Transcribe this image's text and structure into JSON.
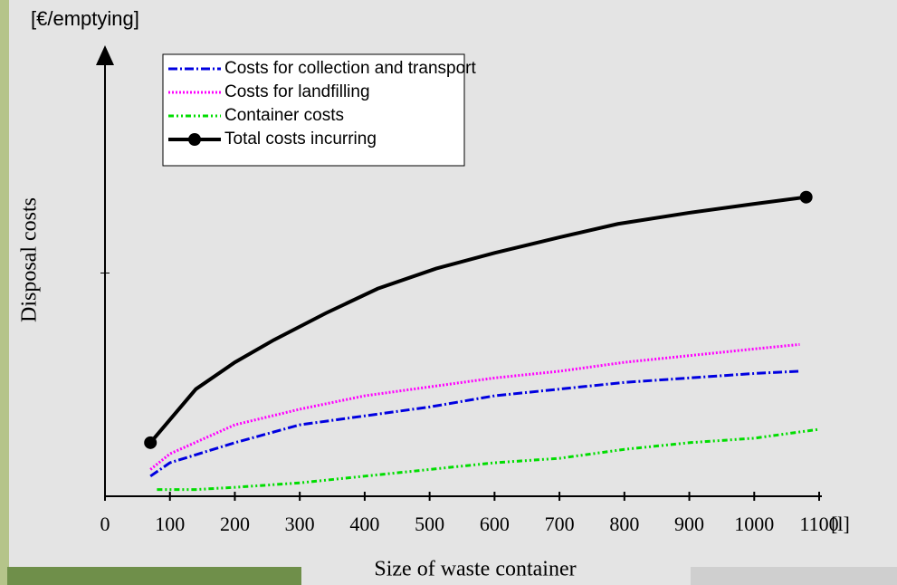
{
  "chart_data": {
    "type": "line",
    "y_unit": "[€/emptying]",
    "x_unit": "[l]",
    "ylabel": "Disposal costs",
    "xlabel": "Size of waste container",
    "xlim": [
      0,
      1100
    ],
    "xticks": [
      0,
      100,
      200,
      300,
      400,
      500,
      600,
      700,
      800,
      900,
      1000,
      1100
    ],
    "ylim": [
      0,
      2
    ],
    "yticks": [
      1
    ],
    "series": [
      {
        "name": "Costs for collection and transport",
        "color": "#0000e0",
        "dash": "10,3,2,3",
        "x": [
          70,
          100,
          200,
          300,
          400,
          500,
          600,
          700,
          800,
          900,
          1000,
          1070
        ],
        "values": [
          0.09,
          0.15,
          0.24,
          0.32,
          0.36,
          0.4,
          0.45,
          0.48,
          0.51,
          0.53,
          0.55,
          0.56
        ]
      },
      {
        "name": "Costs for landfilling",
        "color": "#ff00ff",
        "dash": "2,2",
        "x": [
          70,
          100,
          200,
          300,
          400,
          500,
          600,
          700,
          800,
          900,
          1000,
          1070
        ],
        "values": [
          0.12,
          0.19,
          0.32,
          0.39,
          0.45,
          0.49,
          0.53,
          0.56,
          0.6,
          0.63,
          0.66,
          0.68
        ]
      },
      {
        "name": "Container costs",
        "color": "#00dd00",
        "dash": "6,3,2,3,2,3",
        "x": [
          80,
          140,
          200,
          300,
          400,
          500,
          600,
          700,
          800,
          900,
          1000,
          1100
        ],
        "values": [
          0.03,
          0.03,
          0.04,
          0.06,
          0.09,
          0.12,
          0.15,
          0.17,
          0.21,
          0.24,
          0.26,
          0.3
        ]
      },
      {
        "name": "Total costs incurring",
        "color": "#000000",
        "dash": "none",
        "x": [
          70,
          140,
          200,
          260,
          340,
          420,
          510,
          600,
          700,
          790,
          900,
          1000,
          1080
        ],
        "values": [
          0.24,
          0.48,
          0.6,
          0.7,
          0.82,
          0.93,
          1.02,
          1.09,
          1.16,
          1.22,
          1.27,
          1.31,
          1.34
        ]
      }
    ]
  }
}
